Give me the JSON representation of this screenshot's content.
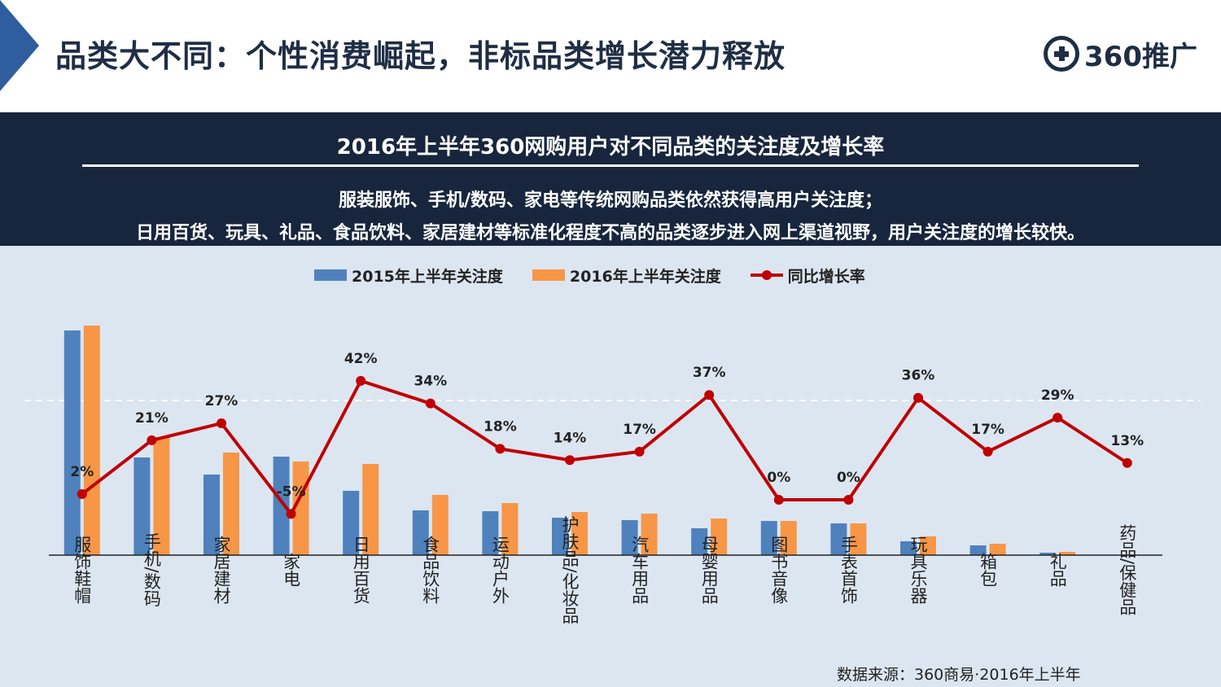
{
  "header": {
    "title": "品类大不同：个性消费崛起，非标品类增长潜力释放",
    "logo_text": "360推广",
    "accent_color": "#2e5e9e"
  },
  "band": {
    "heading": "2016年上半年360网购用户对不同品类的关注度及增长率",
    "line1": "服装服饰、手机/数码、家电等传统网购品类依然获得高用户关注度；",
    "line2": "日用百货、玩具、礼品、食品饮料、家居建材等标准化程度不高的品类逐步进入网上渠道视野，用户关注度的增长较快。",
    "background": "#17263d"
  },
  "chart_data": {
    "type": "bar",
    "categories": [
      "服饰鞋帽",
      "手机/数码",
      "家居建材",
      "家电",
      "日用百货",
      "食品饮料",
      "运动户外",
      "护肤品/化妆品",
      "汽车用品",
      "母婴用品",
      "图书音像",
      "手表首饰",
      "玩具乐器",
      "箱包",
      "礼品",
      "药品/保健品"
    ],
    "series": [
      {
        "name": "2015年上半年关注度",
        "kind": "bar",
        "color": "#4f81bd",
        "values": [
          276,
          120,
          99,
          121,
          79,
          55,
          54,
          46,
          43,
          33,
          42,
          39,
          17,
          12,
          3,
          0
        ]
      },
      {
        "name": "2016年上半年关注度",
        "kind": "bar",
        "color": "#f79646",
        "values": [
          282,
          145,
          126,
          115,
          112,
          74,
          64,
          53,
          51,
          45,
          42,
          39,
          23,
          14,
          4,
          0
        ]
      },
      {
        "name": "同比增长率",
        "kind": "line",
        "color": "#c00000",
        "values": [
          2,
          21,
          27,
          -5,
          42,
          34,
          18,
          14,
          17,
          37,
          0,
          0,
          36,
          17,
          29,
          13
        ],
        "labels": [
          "2%",
          "21%",
          "27%",
          "-5%",
          "42%",
          "34%",
          "18%",
          "14%",
          "17%",
          "37%",
          "0%",
          "0%",
          "36%",
          "17%",
          "29%",
          "13%"
        ]
      }
    ],
    "legend_position": "top-center",
    "reference_line": "dashed"
  },
  "source": "数据来源：360商易·2016年上半年"
}
